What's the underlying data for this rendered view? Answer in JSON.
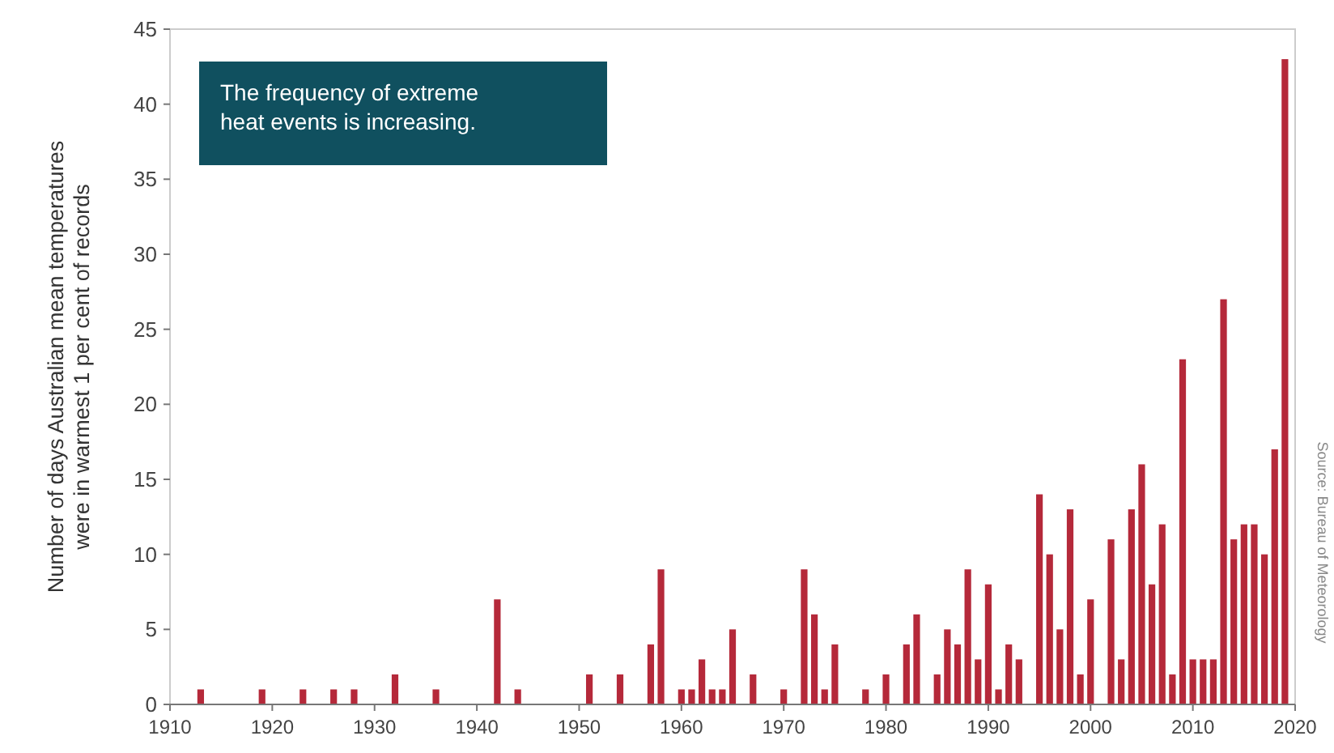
{
  "chart_data": {
    "type": "bar",
    "ylabel": "Number of days Australian mean temperatures were in warmest 1 per cent of records",
    "x": [
      1913,
      1919,
      1923,
      1926,
      1928,
      1932,
      1936,
      1942,
      1944,
      1951,
      1954,
      1957,
      1958,
      1960,
      1961,
      1962,
      1963,
      1964,
      1965,
      1967,
      1970,
      1972,
      1973,
      1974,
      1975,
      1978,
      1980,
      1982,
      1983,
      1985,
      1986,
      1987,
      1988,
      1989,
      1990,
      1991,
      1992,
      1993,
      1995,
      1996,
      1997,
      1998,
      1999,
      2000,
      2002,
      2003,
      2004,
      2005,
      2006,
      2007,
      2008,
      2009,
      2010,
      2011,
      2012,
      2013,
      2014,
      2015,
      2016,
      2017,
      2018,
      2019
    ],
    "values": [
      1,
      1,
      1,
      1,
      1,
      2,
      1,
      7,
      1,
      2,
      2,
      4,
      9,
      1,
      1,
      3,
      1,
      1,
      5,
      2,
      1,
      9,
      6,
      1,
      4,
      1,
      2,
      4,
      6,
      2,
      5,
      4,
      9,
      3,
      8,
      1,
      4,
      3,
      14,
      10,
      5,
      13,
      2,
      7,
      11,
      3,
      13,
      16,
      8,
      12,
      2,
      23,
      3,
      3,
      3,
      27,
      11,
      12,
      12,
      10,
      17,
      43
    ],
    "color": "#b5293a",
    "xlim": [
      1910,
      2020
    ],
    "xticks": [
      1910,
      1920,
      1930,
      1940,
      1950,
      1960,
      1970,
      1980,
      1990,
      2000,
      2010,
      2020
    ],
    "ylim": [
      0,
      45
    ],
    "yticks": [
      0,
      5,
      10,
      15,
      20,
      25,
      30,
      35,
      40,
      45
    ],
    "grid": false,
    "annotations": [
      "The frequency of extreme heat events is increasing.",
      "Source: Bureau of Meteorology"
    ]
  }
}
